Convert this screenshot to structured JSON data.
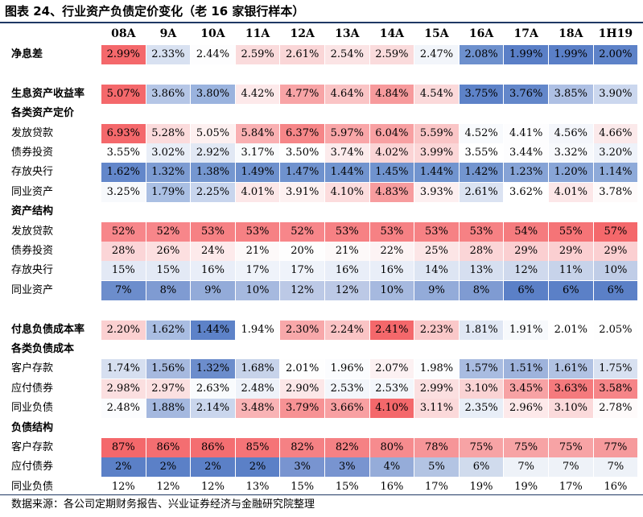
{
  "title": "图表 24、行业资产负债定价变化（老 16 家银行样本）",
  "columns": [
    "08A",
    "9A",
    "10A",
    "11A",
    "12A",
    "13A",
    "14A",
    "15A",
    "16A",
    "17A",
    "18A",
    "1H19"
  ],
  "rows": [
    {
      "label": "净息差",
      "bold": true,
      "values": [
        "2.99%",
        "2.33%",
        "2.44%",
        "2.59%",
        "2.61%",
        "2.54%",
        "2.59%",
        "2.47%",
        "2.08%",
        "1.99%",
        "1.99%",
        "2.00%"
      ],
      "colors": [
        "#f4686b",
        "#d8e1f1",
        "#fdfdfe",
        "#fadbdc",
        "#fad6d7",
        "#fbe4e5",
        "#fadbdc",
        "#f2f5fa",
        "#6d90cd",
        "#5a7fc7",
        "#5a7fc7",
        "#5d82c8"
      ]
    },
    {
      "label": "",
      "bold": false,
      "values": [],
      "colors": []
    },
    {
      "label": "生息资产收益率",
      "bold": true,
      "values": [
        "5.07%",
        "3.86%",
        "3.80%",
        "4.42%",
        "4.77%",
        "4.64%",
        "4.84%",
        "4.54%",
        "3.75%",
        "3.76%",
        "3.85%",
        "3.90%"
      ],
      "colors": [
        "#f4686b",
        "#b5c6e6",
        "#9ab3de",
        "#fde9ea",
        "#f8a4a6",
        "#fac4c5",
        "#f79a9c",
        "#fbd9da",
        "#5d82c8",
        "#6387ca",
        "#aec0e4",
        "#cbd7ee"
      ]
    },
    {
      "label": "各类资产定价",
      "bold": true,
      "values": [],
      "colors": []
    },
    {
      "label": "发放贷款",
      "bold": false,
      "values": [
        "6.93%",
        "5.28%",
        "5.05%",
        "5.84%",
        "6.37%",
        "5.97%",
        "6.04%",
        "5.59%",
        "4.52%",
        "4.41%",
        "4.56%",
        "4.66%"
      ],
      "colors": [
        "#f4686b",
        "#fbdbdc",
        "#fdf0f0",
        "#f9b0b2",
        "#f68688",
        "#f9a6a8",
        "#f8a0a2",
        "#fac5c6",
        "#f8fafd",
        "#fdfdfe",
        "#f4f6fb",
        "#fbe9ea"
      ]
    },
    {
      "label": "债券投资",
      "bold": false,
      "values": [
        "3.55%",
        "3.02%",
        "2.92%",
        "3.17%",
        "3.50%",
        "3.74%",
        "4.02%",
        "3.99%",
        "3.55%",
        "3.44%",
        "3.32%",
        "3.20%"
      ],
      "colors": [
        "#ffffff",
        "#e9eef7",
        "#e1e8f4",
        "#f9fbfd",
        "#ffffff",
        "#fcebec",
        "#fbd4d5",
        "#fbd6d7",
        "#ffffff",
        "#fdfdfe",
        "#f7f9fc",
        "#eef2f9"
      ]
    },
    {
      "label": "存放央行",
      "bold": false,
      "values": [
        "1.62%",
        "1.32%",
        "1.38%",
        "1.49%",
        "1.47%",
        "1.44%",
        "1.45%",
        "1.44%",
        "1.42%",
        "1.23%",
        "1.20%",
        "1.14%"
      ],
      "colors": [
        "#6387ca",
        "#7c9bd2",
        "#7597d0",
        "#6d90cd",
        "#6f92ce",
        "#7194cf",
        "#7093ce",
        "#7194cf",
        "#7395cf",
        "#86a3d6",
        "#88a5d7",
        "#8eaad9"
      ]
    },
    {
      "label": "同业资产",
      "bold": false,
      "values": [
        "3.25%",
        "1.79%",
        "2.25%",
        "4.01%",
        "3.91%",
        "4.10%",
        "4.83%",
        "3.93%",
        "2.61%",
        "3.62%",
        "4.01%",
        "3.78%"
      ],
      "colors": [
        "#f7f9fc",
        "#aabfe3",
        "#c8d5ed",
        "#fce7e8",
        "#fdf1f1",
        "#fcdcdd",
        "#f79c9e",
        "#fdeff0",
        "#dbe3f2",
        "#ffffff",
        "#fce7e8",
        "#fefafa"
      ]
    },
    {
      "label": "资产结构",
      "bold": true,
      "values": [],
      "colors": []
    },
    {
      "label": "发放贷款",
      "bold": false,
      "values": [
        "52%",
        "52%",
        "53%",
        "53%",
        "52%",
        "53%",
        "53%",
        "53%",
        "53%",
        "54%",
        "55%",
        "57%"
      ],
      "colors": [
        "#f7868a",
        "#f7868a",
        "#f68184",
        "#f68184",
        "#f7868a",
        "#f68184",
        "#f68184",
        "#f68184",
        "#f68184",
        "#f57b7e",
        "#f57477",
        "#f4686b"
      ]
    },
    {
      "label": "债券投资",
      "bold": false,
      "values": [
        "28%",
        "26%",
        "24%",
        "21%",
        "20%",
        "21%",
        "22%",
        "25%",
        "28%",
        "29%",
        "29%",
        "29%"
      ],
      "colors": [
        "#fbd5d7",
        "#fcdfe0",
        "#fdeaeb",
        "#fdf9f9",
        "#fefefe",
        "#fdf9f9",
        "#fdf3f4",
        "#fce5e6",
        "#fbd5d7",
        "#fbcfd1",
        "#fbcfd1",
        "#fbcfd1"
      ]
    },
    {
      "label": "存放央行",
      "bold": false,
      "values": [
        "15%",
        "15%",
        "16%",
        "17%",
        "17%",
        "16%",
        "16%",
        "14%",
        "13%",
        "12%",
        "11%",
        "10%"
      ],
      "colors": [
        "#e3e9f5",
        "#e3e9f5",
        "#e9eef8",
        "#eff3fa",
        "#eff3fa",
        "#e9eef8",
        "#e9eef8",
        "#dde5f3",
        "#d6dff0",
        "#cfd9ed",
        "#c7d3ea",
        "#c0cde7"
      ]
    },
    {
      "label": "同业资产",
      "bold": false,
      "values": [
        "7%",
        "8%",
        "9%",
        "10%",
        "12%",
        "12%",
        "10%",
        "9%",
        "8%",
        "6%",
        "6%",
        "6%"
      ],
      "colors": [
        "#6c8dcc",
        "#7f9bd2",
        "#93abd9",
        "#a6b9df",
        "#bcc9e6",
        "#bcc9e6",
        "#a6b9df",
        "#93abd9",
        "#7f9bd2",
        "#5b80c7",
        "#5b80c7",
        "#5b80c7"
      ]
    },
    {
      "label": "",
      "bold": false,
      "values": [],
      "colors": []
    },
    {
      "label": "付息负债成本率",
      "bold": true,
      "values": [
        "2.20%",
        "1.62%",
        "1.44%",
        "1.94%",
        "2.30%",
        "2.24%",
        "2.41%",
        "2.23%",
        "1.81%",
        "1.91%",
        "2.01%",
        "2.05%"
      ],
      "colors": [
        "#fbd0d1",
        "#a9bde2",
        "#5d82c8",
        "#fdfdfe",
        "#f8a8aa",
        "#fac4c5",
        "#f4686b",
        "#fac8c9",
        "#e0e7f4",
        "#f7f9fc",
        "#ffffff",
        "#fefefe"
      ]
    },
    {
      "label": "各类负债成本",
      "bold": true,
      "values": [],
      "colors": []
    },
    {
      "label": "客户存款",
      "bold": false,
      "values": [
        "1.74%",
        "1.56%",
        "1.32%",
        "1.68%",
        "2.01%",
        "1.96%",
        "2.07%",
        "1.98%",
        "1.57%",
        "1.51%",
        "1.61%",
        "1.75%"
      ],
      "colors": [
        "#d6dff0",
        "#a6b9df",
        "#6c8dcc",
        "#c7d3ea",
        "#fefefe",
        "#fbfcfe",
        "#fcf1f2",
        "#fcfdfe",
        "#a9bce1",
        "#9eb3dc",
        "#b1c2e3",
        "#d8e1f1"
      ]
    },
    {
      "label": "应付债券",
      "bold": false,
      "values": [
        "2.98%",
        "2.97%",
        "2.63%",
        "2.48%",
        "2.90%",
        "2.53%",
        "2.53%",
        "2.99%",
        "3.10%",
        "3.45%",
        "3.63%",
        "3.58%"
      ],
      "colors": [
        "#fbdfe0",
        "#fbe0e1",
        "#f9fbfd",
        "#eef2f9",
        "#fce7e8",
        "#f3f6fb",
        "#f3f6fb",
        "#fbdfe0",
        "#fad3d4",
        "#f7a2a4",
        "#f57a7d",
        "#f68588"
      ]
    },
    {
      "label": "同业负债",
      "bold": false,
      "values": [
        "2.48%",
        "1.88%",
        "2.14%",
        "3.48%",
        "3.79%",
        "3.66%",
        "4.10%",
        "3.11%",
        "2.35%",
        "2.96%",
        "3.10%",
        "2.78%"
      ],
      "colors": [
        "#fbfcfe",
        "#a4b8df",
        "#cad6ed",
        "#f9b3b5",
        "#f79294",
        "#f8a0a2",
        "#f4686b",
        "#fbd9da",
        "#e8eef7",
        "#fde9ea",
        "#fbdadb",
        "#fefafa"
      ]
    },
    {
      "label": "负债结构",
      "bold": true,
      "values": [],
      "colors": []
    },
    {
      "label": "客户存款",
      "bold": false,
      "values": [
        "87%",
        "86%",
        "86%",
        "85%",
        "82%",
        "82%",
        "80%",
        "78%",
        "75%",
        "75%",
        "75%",
        "77%"
      ],
      "colors": [
        "#f4686b",
        "#f46e71",
        "#f46e71",
        "#f57477",
        "#f58184",
        "#f58184",
        "#f68b8e",
        "#f69598",
        "#f7a3a5",
        "#f7a3a5",
        "#f7a3a5",
        "#f69a9c"
      ]
    },
    {
      "label": "应付债券",
      "bold": false,
      "values": [
        "2%",
        "2%",
        "2%",
        "2%",
        "3%",
        "3%",
        "4%",
        "5%",
        "6%",
        "7%",
        "7%",
        "7%"
      ],
      "colors": [
        "#5b80c7",
        "#5b80c7",
        "#5b80c7",
        "#5b80c7",
        "#7894d0",
        "#7894d0",
        "#95acd9",
        "#b3c4e3",
        "#d0dbed",
        "#eef2f8",
        "#eef2f8",
        "#eef2f8"
      ]
    },
    {
      "label": "同业负债",
      "bold": false,
      "values": [
        "12%",
        "12%",
        "12%",
        "13%",
        "15%",
        "15%",
        "16%",
        "17%",
        "19%",
        "19%",
        "17%",
        "16%"
      ],
      "colors": [
        "#ffffff",
        "#ffffff",
        "#ffffff",
        "#ffffff",
        "#ffffff",
        "#ffffff",
        "#ffffff",
        "#ffffff",
        "#ffffff",
        "#ffffff",
        "#ffffff",
        "#ffffff"
      ]
    }
  ],
  "source": "数据来源：各公司定期财务报告、兴业证券经济与金融研究院整理"
}
